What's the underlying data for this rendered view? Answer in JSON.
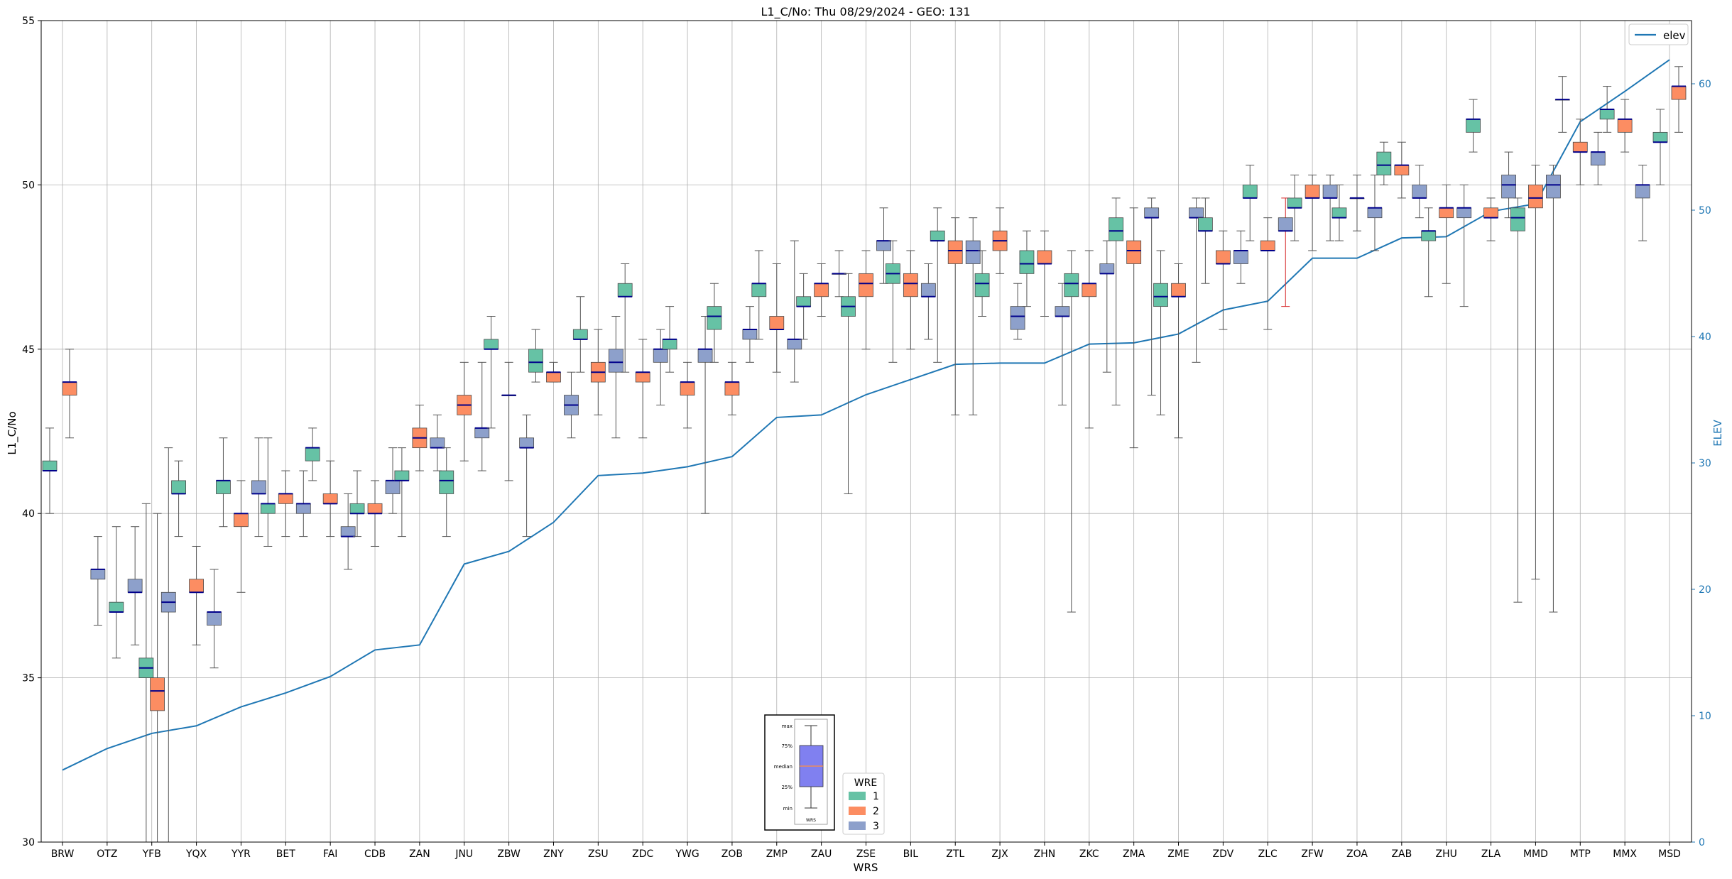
{
  "chart_data": {
    "type": "boxplot",
    "title": "L1_C/No: Thu 08/29/2024 - GEO: 131",
    "xlabel": "WRS",
    "ylabel": "L1_C/No",
    "y2label": "ELEV",
    "ylim": [
      30,
      55
    ],
    "y2lim": [
      0,
      65
    ],
    "yticks": [
      30,
      35,
      40,
      45,
      50,
      55
    ],
    "y2ticks": [
      0,
      10,
      20,
      30,
      40,
      50,
      60
    ],
    "grid": true,
    "categories": [
      "BRW",
      "OTZ",
      "YFB",
      "YQX",
      "YYR",
      "BET",
      "FAI",
      "CDB",
      "ZAN",
      "JNU",
      "ZBW",
      "ZNY",
      "ZSU",
      "ZDC",
      "YWG",
      "ZOB",
      "ZMP",
      "ZAU",
      "ZSE",
      "BIL",
      "ZTL",
      "ZJX",
      "ZHN",
      "ZKC",
      "ZMA",
      "ZME",
      "ZDV",
      "ZLC",
      "ZFW",
      "ZOA",
      "ZAB",
      "ZHU",
      "ZLA",
      "MMD",
      "MTP",
      "MMX",
      "MSD"
    ],
    "colors": {
      "1": "#66c2a5",
      "2": "#fc8d62",
      "3": "#8da0cb",
      "median": "#00008b",
      "elev": "#1f77b4",
      "whisker": "#555555",
      "highlight_whisker": "#d62728"
    },
    "legend_wre": {
      "title": "WRE",
      "entries": [
        "1",
        "2",
        "3"
      ],
      "placement": "bottom-center"
    },
    "legend_elev": {
      "label": "elev",
      "placement": "top-right"
    },
    "inset_labels": {
      "max": "max",
      "q3": "75%",
      "median": "median",
      "q1": "25%",
      "min": "min",
      "xlabel": "WRS"
    },
    "elev": [
      5.7,
      7.4,
      8.6,
      9.2,
      10.7,
      11.8,
      13.1,
      15.2,
      15.6,
      22.0,
      23.0,
      25.3,
      29.0,
      29.2,
      29.7,
      30.5,
      33.6,
      33.8,
      35.4,
      36.6,
      37.8,
      37.9,
      37.9,
      39.4,
      39.5,
      40.2,
      42.1,
      42.8,
      46.2,
      46.2,
      47.8,
      47.9,
      49.9,
      50.5,
      57.0,
      59.4,
      61.9
    ],
    "boxes": [
      {
        "cat": "BRW",
        "wre": 1,
        "min": 40.0,
        "q1": 41.3,
        "median": 41.3,
        "q3": 41.6,
        "max": 42.6
      },
      {
        "cat": "BRW",
        "wre": 2,
        "min": 42.3,
        "q1": 43.6,
        "median": 44.0,
        "q3": 44.0,
        "max": 45.0
      },
      {
        "cat": "OTZ",
        "wre": 3,
        "min": 36.6,
        "q1": 38.0,
        "median": 38.3,
        "q3": 38.3,
        "max": 39.3
      },
      {
        "cat": "OTZ",
        "wre": 1,
        "min": 35.6,
        "q1": 37.0,
        "median": 37.0,
        "q3": 37.3,
        "max": 39.6
      },
      {
        "cat": "YFB",
        "wre": 3,
        "min": 36.0,
        "q1": 37.6,
        "median": 37.6,
        "q3": 38.0,
        "max": 39.6
      },
      {
        "cat": "YFB",
        "wre": 1,
        "min": 30.0,
        "q1": 35.0,
        "median": 35.3,
        "q3": 35.6,
        "max": 40.3
      },
      {
        "cat": "YFB",
        "wre": 2,
        "min": 30.0,
        "q1": 34.0,
        "median": 34.6,
        "q3": 35.0,
        "max": 40.0
      },
      {
        "cat": "YFB",
        "wre": 3,
        "min": 30.0,
        "q1": 37.0,
        "median": 37.3,
        "q3": 37.6,
        "max": 42.0
      },
      {
        "cat": "YQX",
        "wre": 1,
        "min": 39.3,
        "q1": 40.6,
        "median": 40.6,
        "q3": 41.0,
        "max": 41.6
      },
      {
        "cat": "YQX",
        "wre": 2,
        "min": 36.0,
        "q1": 37.6,
        "median": 37.6,
        "q3": 38.0,
        "max": 39.0
      },
      {
        "cat": "YQX",
        "wre": 3,
        "min": 35.3,
        "q1": 36.6,
        "median": 37.0,
        "q3": 37.0,
        "max": 38.3
      },
      {
        "cat": "YYR",
        "wre": 1,
        "min": 39.6,
        "q1": 40.6,
        "median": 41.0,
        "q3": 41.0,
        "max": 42.3
      },
      {
        "cat": "YYR",
        "wre": 2,
        "min": 37.6,
        "q1": 39.6,
        "median": 40.0,
        "q3": 40.0,
        "max": 41.0
      },
      {
        "cat": "YYR",
        "wre": 3,
        "min": 39.3,
        "q1": 40.6,
        "median": 40.6,
        "q3": 41.0,
        "max": 42.3
      },
      {
        "cat": "BET",
        "wre": 1,
        "min": 39.0,
        "q1": 40.0,
        "median": 40.3,
        "q3": 40.3,
        "max": 42.3
      },
      {
        "cat": "BET",
        "wre": 2,
        "min": 39.3,
        "q1": 40.3,
        "median": 40.6,
        "q3": 40.6,
        "max": 41.3
      },
      {
        "cat": "BET",
        "wre": 3,
        "min": 39.3,
        "q1": 40.0,
        "median": 40.3,
        "q3": 40.3,
        "max": 41.3
      },
      {
        "cat": "FAI",
        "wre": 1,
        "min": 41.0,
        "q1": 41.6,
        "median": 42.0,
        "q3": 42.0,
        "max": 42.6
      },
      {
        "cat": "FAI",
        "wre": 2,
        "min": 39.3,
        "q1": 40.3,
        "median": 40.3,
        "q3": 40.6,
        "max": 41.6
      },
      {
        "cat": "FAI",
        "wre": 3,
        "min": 38.3,
        "q1": 39.3,
        "median": 39.3,
        "q3": 39.6,
        "max": 40.6
      },
      {
        "cat": "CDB",
        "wre": 1,
        "min": 39.3,
        "q1": 40.0,
        "median": 40.0,
        "q3": 40.3,
        "max": 41.3
      },
      {
        "cat": "CDB",
        "wre": 2,
        "min": 39.0,
        "q1": 40.0,
        "median": 40.0,
        "q3": 40.3,
        "max": 41.0
      },
      {
        "cat": "CDB",
        "wre": 3,
        "min": 40.0,
        "q1": 40.6,
        "median": 41.0,
        "q3": 41.0,
        "max": 42.0
      },
      {
        "cat": "ZAN",
        "wre": 1,
        "min": 39.3,
        "q1": 41.0,
        "median": 41.0,
        "q3": 41.3,
        "max": 42.0
      },
      {
        "cat": "ZAN",
        "wre": 2,
        "min": 41.3,
        "q1": 42.0,
        "median": 42.3,
        "q3": 42.6,
        "max": 43.3
      },
      {
        "cat": "ZAN",
        "wre": 3,
        "min": 41.3,
        "q1": 42.0,
        "median": 42.0,
        "q3": 42.3,
        "max": 43.0
      },
      {
        "cat": "JNU",
        "wre": 1,
        "min": 39.3,
        "q1": 40.6,
        "median": 41.0,
        "q3": 41.3,
        "max": 42.0
      },
      {
        "cat": "JNU",
        "wre": 2,
        "min": 41.6,
        "q1": 43.0,
        "median": 43.3,
        "q3": 43.6,
        "max": 44.6
      },
      {
        "cat": "JNU",
        "wre": 3,
        "min": 41.3,
        "q1": 42.3,
        "median": 42.6,
        "q3": 42.6,
        "max": 44.6
      },
      {
        "cat": "ZBW",
        "wre": 1,
        "min": 42.6,
        "q1": 45.0,
        "median": 45.0,
        "q3": 45.3,
        "max": 46.0
      },
      {
        "cat": "ZBW",
        "wre": 2,
        "min": 41.0,
        "q1": 43.6,
        "median": 43.6,
        "q3": 43.6,
        "max": 44.6
      },
      {
        "cat": "ZBW",
        "wre": 3,
        "min": 39.3,
        "q1": 42.0,
        "median": 42.0,
        "q3": 42.3,
        "max": 43.0
      },
      {
        "cat": "ZNY",
        "wre": 1,
        "min": 44.0,
        "q1": 44.3,
        "median": 44.6,
        "q3": 45.0,
        "max": 45.6
      },
      {
        "cat": "ZNY",
        "wre": 2,
        "min": 44.0,
        "q1": 44.0,
        "median": 44.3,
        "q3": 44.3,
        "max": 44.6
      },
      {
        "cat": "ZNY",
        "wre": 3,
        "min": 42.3,
        "q1": 43.0,
        "median": 43.3,
        "q3": 43.6,
        "max": 44.3
      },
      {
        "cat": "ZSU",
        "wre": 1,
        "min": 44.3,
        "q1": 45.3,
        "median": 45.3,
        "q3": 45.6,
        "max": 46.6
      },
      {
        "cat": "ZSU",
        "wre": 2,
        "min": 43.0,
        "q1": 44.0,
        "median": 44.3,
        "q3": 44.6,
        "max": 45.6
      },
      {
        "cat": "ZSU",
        "wre": 3,
        "min": 42.3,
        "q1": 44.3,
        "median": 44.6,
        "q3": 45.0,
        "max": 46.0
      },
      {
        "cat": "ZDC",
        "wre": 1,
        "min": 44.3,
        "q1": 46.6,
        "median": 46.6,
        "q3": 47.0,
        "max": 47.6
      },
      {
        "cat": "ZDC",
        "wre": 2,
        "min": 42.3,
        "q1": 44.0,
        "median": 44.3,
        "q3": 44.3,
        "max": 45.3
      },
      {
        "cat": "ZDC",
        "wre": 3,
        "min": 43.3,
        "q1": 44.6,
        "median": 45.0,
        "q3": 45.0,
        "max": 45.6
      },
      {
        "cat": "YWG",
        "wre": 1,
        "min": 44.3,
        "q1": 45.0,
        "median": 45.3,
        "q3": 45.3,
        "max": 46.3
      },
      {
        "cat": "YWG",
        "wre": 2,
        "min": 42.6,
        "q1": 43.6,
        "median": 44.0,
        "q3": 44.0,
        "max": 44.6
      },
      {
        "cat": "YWG",
        "wre": 3,
        "min": 40.0,
        "q1": 44.6,
        "median": 45.0,
        "q3": 45.0,
        "max": 46.0
      },
      {
        "cat": "ZOB",
        "wre": 1,
        "min": 44.6,
        "q1": 45.6,
        "median": 46.0,
        "q3": 46.3,
        "max": 47.0
      },
      {
        "cat": "ZOB",
        "wre": 2,
        "min": 43.0,
        "q1": 43.6,
        "median": 44.0,
        "q3": 44.0,
        "max": 44.6
      },
      {
        "cat": "ZOB",
        "wre": 3,
        "min": 44.6,
        "q1": 45.3,
        "median": 45.6,
        "q3": 45.6,
        "max": 46.3
      },
      {
        "cat": "ZMP",
        "wre": 1,
        "min": 45.3,
        "q1": 46.6,
        "median": 47.0,
        "q3": 47.0,
        "max": 48.0
      },
      {
        "cat": "ZMP",
        "wre": 2,
        "min": 44.3,
        "q1": 45.6,
        "median": 45.6,
        "q3": 46.0,
        "max": 47.6
      },
      {
        "cat": "ZMP",
        "wre": 3,
        "min": 44.0,
        "q1": 45.0,
        "median": 45.3,
        "q3": 45.3,
        "max": 48.3
      },
      {
        "cat": "ZAU",
        "wre": 1,
        "min": 45.3,
        "q1": 46.3,
        "median": 46.3,
        "q3": 46.6,
        "max": 47.3
      },
      {
        "cat": "ZAU",
        "wre": 2,
        "min": 46.0,
        "q1": 46.6,
        "median": 47.0,
        "q3": 47.0,
        "max": 47.6
      },
      {
        "cat": "ZAU",
        "wre": 3,
        "min": 46.6,
        "q1": 47.3,
        "median": 47.3,
        "q3": 47.3,
        "max": 48.0
      },
      {
        "cat": "ZSE",
        "wre": 1,
        "min": 40.6,
        "q1": 46.0,
        "median": 46.3,
        "q3": 46.6,
        "max": 47.3
      },
      {
        "cat": "ZSE",
        "wre": 2,
        "min": 45.0,
        "q1": 46.6,
        "median": 47.0,
        "q3": 47.3,
        "max": 48.0
      },
      {
        "cat": "ZSE",
        "wre": 3,
        "min": 47.0,
        "q1": 48.0,
        "median": 48.3,
        "q3": 48.3,
        "max": 49.3
      },
      {
        "cat": "BIL",
        "wre": 1,
        "min": 44.6,
        "q1": 47.0,
        "median": 47.3,
        "q3": 47.6,
        "max": 48.3
      },
      {
        "cat": "BIL",
        "wre": 2,
        "min": 45.0,
        "q1": 46.6,
        "median": 47.0,
        "q3": 47.3,
        "max": 48.0
      },
      {
        "cat": "BIL",
        "wre": 3,
        "min": 45.3,
        "q1": 46.6,
        "median": 46.6,
        "q3": 47.0,
        "max": 47.6
      },
      {
        "cat": "ZTL",
        "wre": 1,
        "min": 44.6,
        "q1": 48.3,
        "median": 48.3,
        "q3": 48.6,
        "max": 49.3
      },
      {
        "cat": "ZTL",
        "wre": 2,
        "min": 43.0,
        "q1": 47.6,
        "median": 48.0,
        "q3": 48.3,
        "max": 49.0
      },
      {
        "cat": "ZTL",
        "wre": 3,
        "min": 43.0,
        "q1": 47.6,
        "median": 48.0,
        "q3": 48.3,
        "max": 49.0
      },
      {
        "cat": "ZJX",
        "wre": 1,
        "min": 46.0,
        "q1": 46.6,
        "median": 47.0,
        "q3": 47.3,
        "max": 48.0
      },
      {
        "cat": "ZJX",
        "wre": 2,
        "min": 47.3,
        "q1": 48.0,
        "median": 48.3,
        "q3": 48.6,
        "max": 49.3
      },
      {
        "cat": "ZJX",
        "wre": 3,
        "min": 45.3,
        "q1": 45.6,
        "median": 46.0,
        "q3": 46.3,
        "max": 47.0
      },
      {
        "cat": "ZHN",
        "wre": 1,
        "min": 46.3,
        "q1": 47.3,
        "median": 47.6,
        "q3": 48.0,
        "max": 48.6
      },
      {
        "cat": "ZHN",
        "wre": 2,
        "min": 46.0,
        "q1": 47.6,
        "median": 47.6,
        "q3": 48.0,
        "max": 48.6
      },
      {
        "cat": "ZHN",
        "wre": 3,
        "min": 43.3,
        "q1": 46.0,
        "median": 46.0,
        "q3": 46.3,
        "max": 47.0
      },
      {
        "cat": "ZKC",
        "wre": 1,
        "min": 37.0,
        "q1": 46.6,
        "median": 47.0,
        "q3": 47.3,
        "max": 48.0
      },
      {
        "cat": "ZKC",
        "wre": 2,
        "min": 42.6,
        "q1": 46.6,
        "median": 47.0,
        "q3": 47.0,
        "max": 48.0
      },
      {
        "cat": "ZKC",
        "wre": 3,
        "min": 44.3,
        "q1": 47.3,
        "median": 47.3,
        "q3": 47.6,
        "max": 48.3
      },
      {
        "cat": "ZMA",
        "wre": 1,
        "min": 43.3,
        "q1": 48.3,
        "median": 48.6,
        "q3": 49.0,
        "max": 49.6
      },
      {
        "cat": "ZMA",
        "wre": 2,
        "min": 42.0,
        "q1": 47.6,
        "median": 48.0,
        "q3": 48.3,
        "max": 49.3
      },
      {
        "cat": "ZMA",
        "wre": 3,
        "min": 43.6,
        "q1": 49.0,
        "median": 49.0,
        "q3": 49.3,
        "max": 49.6
      },
      {
        "cat": "ZME",
        "wre": 1,
        "min": 43.0,
        "q1": 46.3,
        "median": 46.6,
        "q3": 47.0,
        "max": 48.0
      },
      {
        "cat": "ZME",
        "wre": 2,
        "min": 42.3,
        "q1": 46.6,
        "median": 46.6,
        "q3": 47.0,
        "max": 47.6
      },
      {
        "cat": "ZME",
        "wre": 3,
        "min": 44.6,
        "q1": 49.0,
        "median": 49.0,
        "q3": 49.3,
        "max": 49.6
      },
      {
        "cat": "ZDV",
        "wre": 1,
        "min": 47.0,
        "q1": 48.6,
        "median": 48.6,
        "q3": 49.0,
        "max": 49.6
      },
      {
        "cat": "ZDV",
        "wre": 2,
        "min": 45.6,
        "q1": 47.6,
        "median": 47.6,
        "q3": 48.0,
        "max": 48.6
      },
      {
        "cat": "ZDV",
        "wre": 3,
        "min": 47.0,
        "q1": 47.6,
        "median": 48.0,
        "q3": 48.0,
        "max": 48.6
      },
      {
        "cat": "ZLC",
        "wre": 1,
        "min": 48.3,
        "q1": 49.6,
        "median": 49.6,
        "q3": 50.0,
        "max": 50.6
      },
      {
        "cat": "ZLC",
        "wre": 2,
        "min": 45.6,
        "q1": 48.0,
        "median": 48.0,
        "q3": 48.3,
        "max": 49.0
      },
      {
        "cat": "ZLC",
        "wre": 3,
        "min": 46.3,
        "q1": 48.6,
        "median": 48.6,
        "q3": 49.0,
        "max": 49.6,
        "whisker_color": "highlight_whisker"
      },
      {
        "cat": "ZFW",
        "wre": 1,
        "min": 48.3,
        "q1": 49.3,
        "median": 49.3,
        "q3": 49.6,
        "max": 50.3
      },
      {
        "cat": "ZFW",
        "wre": 2,
        "min": 48.0,
        "q1": 49.6,
        "median": 49.6,
        "q3": 50.0,
        "max": 50.3
      },
      {
        "cat": "ZFW",
        "wre": 3,
        "min": 48.3,
        "q1": 49.6,
        "median": 49.6,
        "q3": 50.0,
        "max": 50.3
      },
      {
        "cat": "ZOA",
        "wre": 1,
        "min": 48.3,
        "q1": 49.0,
        "median": 49.0,
        "q3": 49.3,
        "max": 50.0
      },
      {
        "cat": "ZOA",
        "wre": 2,
        "min": 48.6,
        "q1": 49.6,
        "median": 49.6,
        "q3": 49.6,
        "max": 50.3
      },
      {
        "cat": "ZOA",
        "wre": 3,
        "min": 48.0,
        "q1": 49.0,
        "median": 49.3,
        "q3": 49.3,
        "max": 50.3
      },
      {
        "cat": "ZAB",
        "wre": 1,
        "min": 50.0,
        "q1": 50.3,
        "median": 50.6,
        "q3": 51.0,
        "max": 51.3
      },
      {
        "cat": "ZAB",
        "wre": 2,
        "min": 49.6,
        "q1": 50.3,
        "median": 50.6,
        "q3": 50.6,
        "max": 51.3
      },
      {
        "cat": "ZAB",
        "wre": 3,
        "min": 49.0,
        "q1": 49.6,
        "median": 49.6,
        "q3": 50.0,
        "max": 50.6
      },
      {
        "cat": "ZHU",
        "wre": 1,
        "min": 46.6,
        "q1": 48.3,
        "median": 48.6,
        "q3": 48.6,
        "max": 49.3
      },
      {
        "cat": "ZHU",
        "wre": 2,
        "min": 47.0,
        "q1": 49.0,
        "median": 49.3,
        "q3": 49.3,
        "max": 50.0
      },
      {
        "cat": "ZHU",
        "wre": 3,
        "min": 46.3,
        "q1": 49.0,
        "median": 49.3,
        "q3": 49.3,
        "max": 50.0
      },
      {
        "cat": "ZLA",
        "wre": 1,
        "min": 51.0,
        "q1": 51.6,
        "median": 52.0,
        "q3": 52.0,
        "max": 52.6
      },
      {
        "cat": "ZLA",
        "wre": 2,
        "min": 48.3,
        "q1": 49.0,
        "median": 49.0,
        "q3": 49.3,
        "max": 49.6
      },
      {
        "cat": "ZLA",
        "wre": 3,
        "min": 49.0,
        "q1": 49.6,
        "median": 50.0,
        "q3": 50.3,
        "max": 51.0
      },
      {
        "cat": "MMD",
        "wre": 1,
        "min": 37.3,
        "q1": 48.6,
        "median": 49.0,
        "q3": 49.3,
        "max": 49.6
      },
      {
        "cat": "MMD",
        "wre": 2,
        "min": 38.0,
        "q1": 49.3,
        "median": 49.6,
        "q3": 50.0,
        "max": 50.6
      },
      {
        "cat": "MMD",
        "wre": 3,
        "min": 37.0,
        "q1": 49.6,
        "median": 50.0,
        "q3": 50.3,
        "max": 50.6
      },
      {
        "cat": "MTP",
        "wre": 1,
        "min": 51.6,
        "q1": 52.6,
        "median": 52.6,
        "q3": 52.6,
        "max": 53.3
      },
      {
        "cat": "MTP",
        "wre": 2,
        "min": 50.0,
        "q1": 51.0,
        "median": 51.0,
        "q3": 51.3,
        "max": 52.0
      },
      {
        "cat": "MTP",
        "wre": 3,
        "min": 50.0,
        "q1": 50.6,
        "median": 51.0,
        "q3": 51.0,
        "max": 51.6
      },
      {
        "cat": "MMX",
        "wre": 1,
        "min": 51.6,
        "q1": 52.0,
        "median": 52.3,
        "q3": 52.3,
        "max": 53.0
      },
      {
        "cat": "MMX",
        "wre": 2,
        "min": 51.0,
        "q1": 51.6,
        "median": 52.0,
        "q3": 52.0,
        "max": 52.6
      },
      {
        "cat": "MMX",
        "wre": 3,
        "min": 48.3,
        "q1": 49.6,
        "median": 50.0,
        "q3": 50.0,
        "max": 50.6
      },
      {
        "cat": "MSD",
        "wre": 1,
        "min": 50.0,
        "q1": 51.3,
        "median": 51.3,
        "q3": 51.6,
        "max": 52.3
      },
      {
        "cat": "MSD",
        "wre": 2,
        "min": 51.6,
        "q1": 52.6,
        "median": 53.0,
        "q3": 53.0,
        "max": 53.6
      }
    ]
  }
}
